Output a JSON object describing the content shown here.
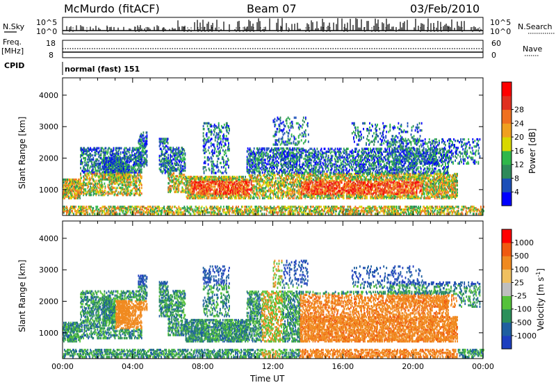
{
  "header": {
    "station": "McMurdo (fitACF)",
    "beam": "Beam 07",
    "date": "03/Feb/2010"
  },
  "left_labels": {
    "nsky": "N.Sky",
    "freq": "Freq.",
    "freq_unit": "[MHz]",
    "cpid": "CPID"
  },
  "right_labels": {
    "nsearch": "N.Search",
    "nave": "Nave"
  },
  "cpid_text": "normal (fast) 151",
  "panels": {
    "noise": {
      "left_ticks": [
        "10^5",
        "10^0"
      ],
      "right_ticks": [
        "10^5",
        "10^0"
      ]
    },
    "freq": {
      "left_ticks": [
        "18",
        "8"
      ],
      "right_ticks": [
        "60",
        "0"
      ]
    }
  },
  "chart_data": [
    {
      "type": "heatmap",
      "name": "power",
      "ylabel": "Slant Range [km]",
      "ylim": [
        180,
        4550
      ],
      "yticks": [
        1000,
        2000,
        3000,
        4000
      ],
      "xlim_hours": [
        0,
        24
      ],
      "colorbar": {
        "label": "Power [dB]",
        "ticks": [
          "4",
          "8",
          "12",
          "16",
          "20",
          "24",
          "28"
        ],
        "colors": [
          "#0000ff",
          "#1b4fb8",
          "#2e8a5a",
          "#2fb74a",
          "#d8d800",
          "#f0a020",
          "#f07020",
          "#e03020",
          "#ff0000"
        ]
      }
    },
    {
      "type": "heatmap",
      "name": "velocity",
      "ylabel": "Slant Range [km]",
      "ylim": [
        180,
        4550
      ],
      "yticks": [
        1000,
        2000,
        3000,
        4000
      ],
      "xlim_hours": [
        0,
        24
      ],
      "xlabel": "Time UT",
      "xticks": [
        "00:00",
        "04:00",
        "08:00",
        "12:00",
        "16:00",
        "20:00",
        "00:00"
      ],
      "colorbar": {
        "label": "Velocity [m s",
        "label_sup": "-1",
        "ticks": [
          "1000",
          "500",
          "100",
          "25",
          "-25",
          "-100",
          "-500",
          "-1000"
        ],
        "colors": [
          "#1e3fbf",
          "#1f5fa0",
          "#2b8f5a",
          "#55c23a",
          "#bfbfbf",
          "#f0c060",
          "#f08a20",
          "#f05a10",
          "#ff0000"
        ]
      }
    }
  ]
}
